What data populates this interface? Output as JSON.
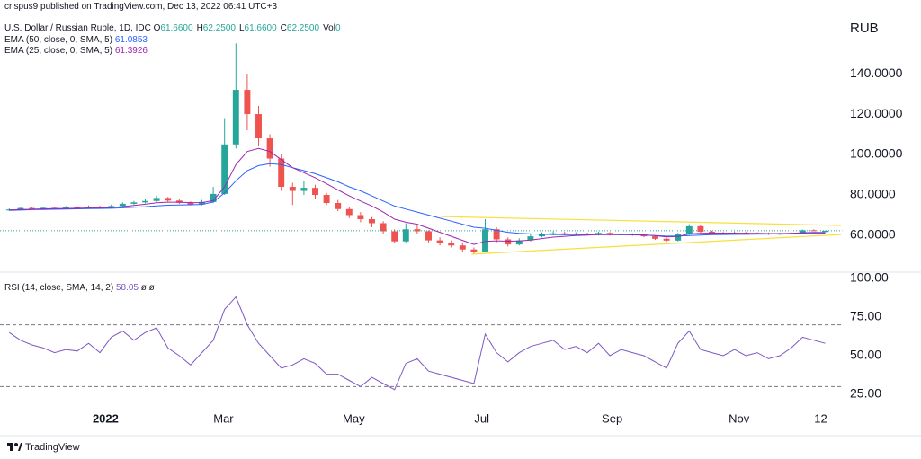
{
  "header": {
    "author_line": "crispus9 published on TradingView.com, Dec 13, 2022 06:41 UTC+3",
    "symbol": "U.S. Dollar / Russian Ruble, 1D, IDC",
    "ohlc": [
      {
        "label": "O",
        "value": "61.6600"
      },
      {
        "label": "H",
        "value": "62.2500"
      },
      {
        "label": "L",
        "value": "61.6600"
      },
      {
        "label": "C",
        "value": "62.2500"
      },
      {
        "label": "Vol",
        "value": "0"
      }
    ],
    "footer": "TradingView"
  },
  "chart_data": [
    {
      "type": "candlestick",
      "unit": "RUB",
      "up_color": "#26a69a",
      "down_color": "#ef5350",
      "price_line": true,
      "xlim": [
        0,
        74
      ],
      "ylim": [
        43.1,
        167.6
      ],
      "yticks": [
        {
          "value": 60,
          "label": "60.0000"
        },
        {
          "value": 80,
          "label": "80.0000"
        },
        {
          "value": 100,
          "label": "100.0000"
        },
        {
          "value": 120,
          "label": "120.0000"
        },
        {
          "value": 140,
          "label": "140.0000"
        }
      ],
      "open": [
        72.5,
        72.8,
        73.5,
        73.2,
        73.6,
        73.4,
        73.9,
        73.5,
        74.2,
        73.8,
        74.5,
        75.6,
        76.3,
        77,
        78.5,
        77.2,
        76.1,
        75.3,
        76.5,
        80.5,
        105,
        132,
        120,
        108,
        98,
        84,
        82,
        83.5,
        80,
        76,
        73,
        70,
        68,
        66,
        62,
        57,
        63,
        62,
        57.5,
        56,
        55,
        53,
        52,
        63,
        58,
        55.5,
        57.5,
        59.5,
        60.5,
        61,
        60.6,
        60.8,
        60.3,
        61.2,
        60.4,
        60.5,
        60.2,
        59.5,
        58.3,
        57.4,
        60.5,
        64.5,
        61.8,
        61.2,
        61,
        61.3,
        60.8,
        61,
        60.6,
        60.8,
        61.2,
        62.5,
        61.66
      ],
      "high": [
        73.3,
        74,
        74,
        74.1,
        74,
        74.5,
        74.3,
        74.8,
        74.7,
        75.2,
        76.3,
        77,
        77.9,
        79.6,
        79,
        77.8,
        76.8,
        77.5,
        84,
        118,
        155,
        140,
        124,
        110,
        100,
        86,
        87,
        85,
        81,
        77.5,
        74,
        71.5,
        69,
        67,
        63,
        66,
        65,
        62.5,
        59,
        57.5,
        56,
        54,
        68,
        64,
        59,
        58.5,
        60.5,
        61.5,
        62,
        61.7,
        61.5,
        61.3,
        61.9,
        61.6,
        61.1,
        61,
        60.7,
        60,
        58.8,
        61.2,
        65.5,
        65,
        62.3,
        61.7,
        61.9,
        61.7,
        61.5,
        61.4,
        61.3,
        61.8,
        62.9,
        63,
        62.25
      ],
      "low": [
        72.1,
        72.4,
        72.7,
        72.8,
        72.9,
        73,
        73,
        73.1,
        73.3,
        73.4,
        74.1,
        75.2,
        75.8,
        76.5,
        76.6,
        75.5,
        74.8,
        74.9,
        76,
        80,
        103,
        112,
        104,
        94,
        82,
        75,
        80,
        78,
        75,
        72,
        68.5,
        66.5,
        64,
        60.5,
        56,
        56.5,
        60.5,
        56.5,
        55,
        54,
        52,
        50.5,
        51.5,
        56.5,
        54.5,
        55,
        57,
        59,
        60,
        60,
        60.1,
        59.8,
        59.9,
        59.9,
        60,
        59.7,
        59,
        57.8,
        56.8,
        57,
        60.1,
        61.3,
        60.8,
        60.5,
        60.6,
        60.4,
        60.5,
        60.2,
        60.3,
        60.5,
        61,
        62,
        61.66
      ],
      "close": [
        72.8,
        73.5,
        73.2,
        73.6,
        73.4,
        73.9,
        73.5,
        74.2,
        73.8,
        74.5,
        75.6,
        76.3,
        77,
        78.5,
        77.2,
        76.1,
        75.3,
        76.5,
        80.5,
        105,
        132,
        120,
        108,
        98,
        84,
        82,
        83.5,
        80,
        76,
        73,
        70,
        68,
        66,
        62,
        57,
        63,
        62,
        57.5,
        56,
        55,
        53,
        52,
        63,
        58,
        55.5,
        57.5,
        59.5,
        60.5,
        61,
        60.6,
        60.8,
        60.3,
        61.2,
        60.4,
        60.5,
        60.2,
        59.5,
        58.3,
        57.4,
        60.5,
        64.5,
        61.8,
        61.2,
        61,
        61.3,
        60.8,
        61,
        60.6,
        60.8,
        61.2,
        62.5,
        62.3,
        62.25
      ],
      "series": [
        {
          "name": "EMA (50, close, 0, SMA, 5)",
          "color": "#2962ff",
          "value_label": "61.0853",
          "values": [
            72.3,
            72.5,
            72.7,
            72.8,
            72.9,
            73,
            73.1,
            73.2,
            73.3,
            73.4,
            73.6,
            73.9,
            74.2,
            74.6,
            74.9,
            75,
            75.1,
            75.3,
            76.5,
            81,
            87,
            92,
            94.5,
            95.5,
            95,
            93.5,
            92,
            90.5,
            88.5,
            86.5,
            84,
            82,
            79.5,
            77,
            74.5,
            73,
            71.5,
            70,
            68.5,
            67,
            65.5,
            64,
            63.5,
            62.5,
            61.5,
            61,
            60.7,
            60.5,
            60.4,
            60.3,
            60.3,
            60.3,
            60.3,
            60.3,
            60.3,
            60.2,
            60.1,
            59.9,
            59.6,
            59.6,
            59.9,
            60.1,
            60.3,
            60.4,
            60.5,
            60.5,
            60.6,
            60.6,
            60.7,
            60.8,
            60.9,
            61,
            61.0853
          ]
        },
        {
          "name": "EMA (25, close, 0, SMA, 5)",
          "color": "#9c27b0",
          "value_label": "61.3926",
          "values": [
            72.6,
            72.8,
            72.9,
            73.1,
            73.2,
            73.3,
            73.4,
            73.5,
            73.6,
            73.8,
            74.2,
            74.8,
            75.4,
            76.1,
            76.4,
            76.4,
            76.2,
            76.2,
            77.2,
            84,
            95,
            101.5,
            103,
            101.5,
            97.5,
            93.5,
            91,
            88.5,
            85.5,
            82.5,
            79.5,
            77,
            74.5,
            71.5,
            68,
            66.5,
            65.5,
            63.5,
            61.5,
            59.5,
            57.5,
            55.5,
            57,
            57.3,
            57.1,
            57.2,
            57.7,
            58.4,
            59.1,
            59.5,
            59.9,
            60.1,
            60.4,
            60.4,
            60.4,
            60.4,
            60.2,
            59.8,
            59.2,
            59.4,
            60.7,
            61,
            61.1,
            61.1,
            61.1,
            61,
            61,
            60.9,
            60.9,
            61,
            61.3,
            61.4,
            61.3926
          ]
        }
      ],
      "trendlines": [
        {
          "color": "#f7e03c",
          "x": [
            38.6,
            73.9
          ],
          "y": [
            69.3,
            64.9
          ]
        },
        {
          "color": "#f7e03c",
          "x": [
            41.3,
            73.9
          ],
          "y": [
            50.7,
            60.4
          ]
        }
      ]
    },
    {
      "type": "line",
      "flags": "ø ø",
      "xlim": [
        0,
        74
      ],
      "ylim": [
        15.7,
        102.9
      ],
      "yticks": [
        {
          "value": 25,
          "label": "25.00"
        },
        {
          "value": 50,
          "label": "50.00"
        },
        {
          "value": 75,
          "label": "75.00"
        },
        {
          "value": 100,
          "label": "100.00"
        }
      ],
      "bands": [
        70,
        30
      ],
      "xticks": [
        {
          "value": 9,
          "label": "2022"
        },
        {
          "value": 19.4,
          "label": "Mar"
        },
        {
          "value": 30.9,
          "label": "May"
        },
        {
          "value": 42.2,
          "label": "Jul"
        },
        {
          "value": 53.7,
          "label": "Sep"
        },
        {
          "value": 64.9,
          "label": "Nov"
        },
        {
          "value": 72.1,
          "label": "12"
        }
      ],
      "series": [
        {
          "name": "RSI (14, close, SMA, 14, 2)",
          "color": "#7e57c2",
          "value_label": "58.05",
          "values": [
            65,
            60,
            57,
            55,
            52,
            54,
            53,
            58,
            52,
            62,
            66,
            60,
            65,
            68,
            55,
            50,
            44,
            52,
            60,
            80,
            88,
            70,
            58,
            50,
            42,
            44,
            48,
            45,
            38,
            38,
            34,
            30,
            36,
            32,
            28,
            45,
            48,
            40,
            38,
            36,
            34,
            32,
            64,
            52,
            46,
            52,
            56,
            58,
            60,
            54,
            56,
            52,
            58,
            50,
            54,
            52,
            50,
            46,
            42,
            58,
            66,
            54,
            52,
            50,
            54,
            50,
            52,
            48,
            50,
            55,
            62,
            60,
            58.05
          ]
        }
      ]
    }
  ]
}
